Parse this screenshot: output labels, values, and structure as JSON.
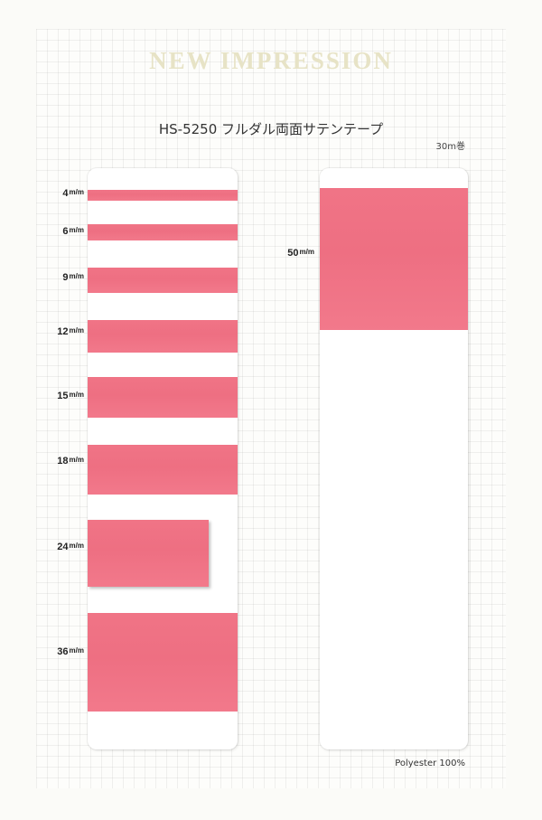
{
  "header": {
    "brand": "NEW IMPRESSION",
    "title": "HS-5250 フルダル両面サテンテープ",
    "roll_length": "30m巻"
  },
  "colors": {
    "ribbon": "#ef7184",
    "brand_text": "#e7e3c6",
    "card": "#ffffff"
  },
  "unit_label": "m/m",
  "samples_left": [
    {
      "size": "4"
    },
    {
      "size": "6"
    },
    {
      "size": "9"
    },
    {
      "size": "12"
    },
    {
      "size": "15"
    },
    {
      "size": "18"
    },
    {
      "size": "24"
    },
    {
      "size": "36"
    }
  ],
  "samples_right": [
    {
      "size": "50"
    }
  ],
  "footer": {
    "material": "Polyester 100%"
  }
}
